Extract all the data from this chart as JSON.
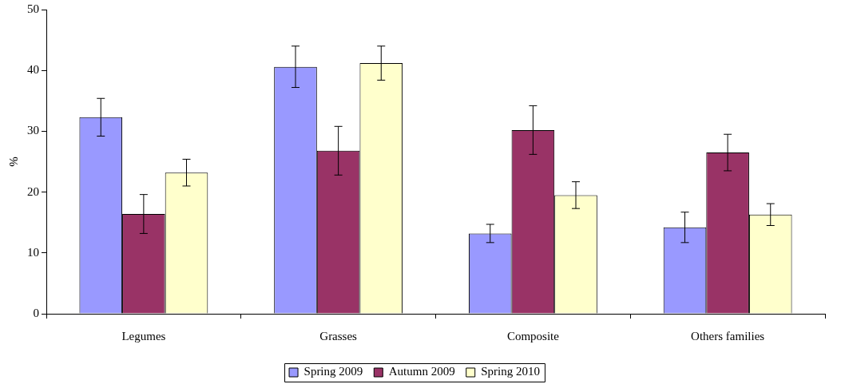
{
  "chart_data": {
    "type": "bar",
    "ylabel": "%",
    "categories": [
      "Legumes",
      "Grasses",
      "Composite",
      "Others families"
    ],
    "series": [
      {
        "name": "Spring 2009",
        "color": "#9999ff",
        "values": [
          32.3,
          40.6,
          13.2,
          14.2
        ],
        "errors": [
          3.1,
          3.4,
          1.5,
          2.5
        ]
      },
      {
        "name": "Autumn 2009",
        "color": "#993366",
        "values": [
          16.4,
          26.8,
          30.2,
          26.5
        ],
        "errors": [
          3.2,
          4,
          4,
          3
        ]
      },
      {
        "name": "Spring 2010",
        "color": "#ffffcc",
        "values": [
          23.2,
          41.2,
          19.5,
          16.3
        ],
        "errors": [
          2.2,
          2.8,
          2.2,
          1.8
        ]
      }
    ],
    "ylim": [
      0,
      50
    ],
    "yticks": [
      0,
      10,
      20,
      30,
      40,
      50
    ],
    "grid": false,
    "legend": "bottom"
  }
}
